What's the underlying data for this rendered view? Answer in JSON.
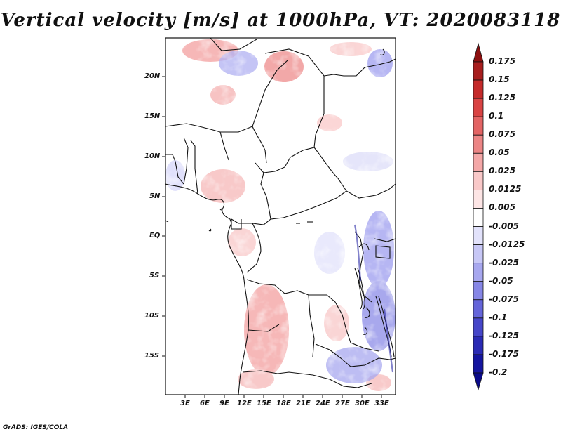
{
  "title": "Vertical velocity [m/s] at 1000hPa, VT: 2020083118",
  "footer": "GrADS: IGES/COLA",
  "map": {
    "lat_labels": [
      "20N",
      "15N",
      "10N",
      "5N",
      "EQ",
      "5S",
      "10S",
      "15S"
    ],
    "lon_labels": [
      "3E",
      "6E",
      "9E",
      "12E",
      "15E",
      "18E",
      "21E",
      "24E",
      "27E",
      "30E",
      "33E"
    ]
  },
  "colorbar": {
    "levels": [
      "0.175",
      "0.15",
      "0.125",
      "0.1",
      "0.075",
      "0.05",
      "0.025",
      "0.0125",
      "0.005",
      "-0.005",
      "-0.0125",
      "-0.025",
      "-0.05",
      "-0.075",
      "-0.1",
      "-0.125",
      "-0.175",
      "-0.2"
    ],
    "colors": [
      "#8c1010",
      "#a81e1e",
      "#c52a2a",
      "#d94343",
      "#e36464",
      "#ec8585",
      "#f4a7a7",
      "#f9c8c8",
      "#fde5e5",
      "#ffffff",
      "#e2e2fb",
      "#c7c7f6",
      "#a7a7ef",
      "#8686e6",
      "#6565da",
      "#4646c9",
      "#2b2bb5",
      "#1515a0",
      "#0a0a8a"
    ]
  }
}
